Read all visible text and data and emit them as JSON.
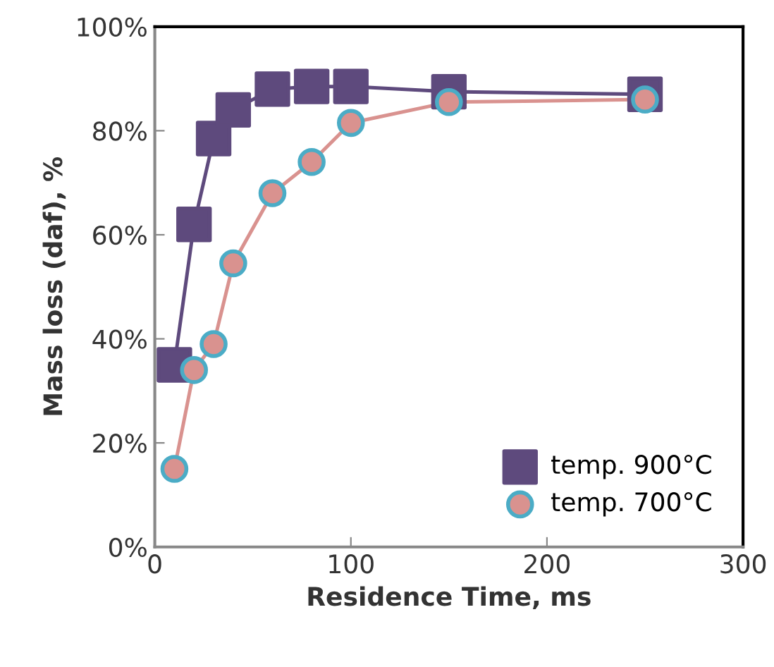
{
  "chart_data": {
    "type": "line",
    "xlabel": "Residence Time, ms",
    "ylabel": "Mass loss (daf), %",
    "x": [
      10,
      20,
      30,
      40,
      60,
      80,
      100,
      150,
      250
    ],
    "series": [
      {
        "name": "temp. 900°C",
        "color": "#5e4a7d",
        "marker": "square",
        "values": [
          35,
          62,
          78.5,
          84,
          88,
          88.5,
          88.5,
          87.5,
          87
        ]
      },
      {
        "name": "temp. 700°C",
        "color": "#d9928f",
        "marker": "circle",
        "values": [
          15,
          34,
          39,
          54.5,
          68,
          74,
          81.5,
          85.5,
          86
        ]
      }
    ],
    "xlim": [
      0,
      300
    ],
    "xticks": [
      0,
      100,
      200,
      300
    ],
    "ylim": [
      0,
      100
    ],
    "yticks": [
      {
        "value": 0,
        "label": "0%"
      },
      {
        "value": 20,
        "label": "20%"
      },
      {
        "value": 40,
        "label": "40%"
      },
      {
        "value": 60,
        "label": "60%"
      },
      {
        "value": 80,
        "label": "80%"
      },
      {
        "value": 100,
        "label": "100%"
      }
    ],
    "grid": false,
    "legend": "bottom right",
    "line_style": "solid"
  }
}
